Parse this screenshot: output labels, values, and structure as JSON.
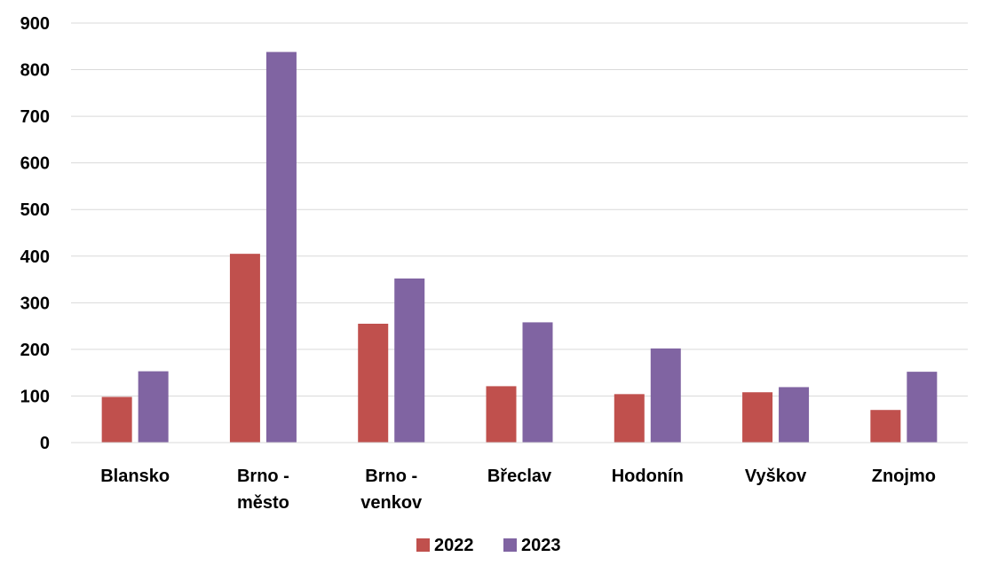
{
  "chart_data": {
    "type": "bar",
    "categories": [
      [
        "Blansko"
      ],
      [
        "Brno -",
        "město"
      ],
      [
        "Brno -",
        "venkov"
      ],
      [
        "Břeclav"
      ],
      [
        "Hodonín"
      ],
      [
        "Vyškov"
      ],
      [
        "Znojmo"
      ]
    ],
    "series": [
      {
        "name": "2022",
        "color": "#c0504d",
        "values": [
          98,
          405,
          255,
          121,
          104,
          108,
          70
        ]
      },
      {
        "name": "2023",
        "color": "#8064a2",
        "values": [
          153,
          838,
          352,
          258,
          202,
          119,
          152
        ]
      }
    ],
    "ylim": [
      0,
      900
    ],
    "yticks": [
      0,
      100,
      200,
      300,
      400,
      500,
      600,
      700,
      800,
      900
    ],
    "grid": true,
    "gridColor": "#d9d9d9",
    "legend": "bottom",
    "title": "",
    "xlabel": "",
    "ylabel": ""
  }
}
